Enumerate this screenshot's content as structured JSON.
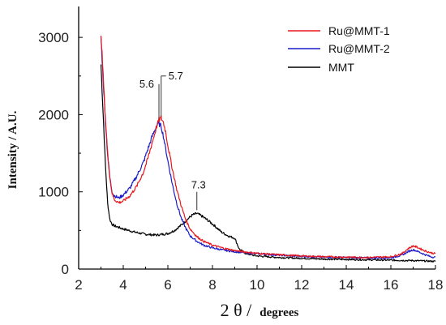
{
  "chart_data": {
    "type": "line",
    "title": "",
    "xlabel": {
      "symbol": "2 θ /",
      "unit": "degrees"
    },
    "ylabel": "Intensity / A.U.",
    "xlim": [
      2,
      18
    ],
    "ylim": [
      0,
      3400
    ],
    "xticks": [
      2,
      4,
      6,
      8,
      10,
      12,
      14,
      16,
      18
    ],
    "yticks": [
      0,
      1000,
      2000,
      3000
    ],
    "legend_position": "top-right",
    "colors": {
      "Ru@MMT-1": "#e8171c",
      "Ru@MMT-2": "#1c1cc8",
      "MMT": "#000000"
    },
    "series": [
      {
        "name": "Ru@MMT-1",
        "x": [
          3.0,
          3.1,
          3.2,
          3.3,
          3.4,
          3.5,
          3.6,
          3.8,
          4.0,
          4.3,
          4.6,
          4.9,
          5.1,
          5.3,
          5.5,
          5.6,
          5.7,
          5.8,
          5.9,
          6.0,
          6.2,
          6.4,
          6.6,
          6.8,
          7.0,
          7.3,
          7.6,
          8.0,
          8.5,
          9.0,
          9.5,
          10.0,
          11.0,
          12.0,
          13.0,
          14.0,
          15.0,
          16.0,
          16.5,
          16.8,
          17.0,
          17.2,
          17.5,
          17.8,
          18.0
        ],
        "y": [
          3060,
          2500,
          1950,
          1500,
          1180,
          980,
          900,
          860,
          880,
          950,
          1070,
          1250,
          1430,
          1640,
          1850,
          1930,
          1960,
          1900,
          1780,
          1600,
          1300,
          1030,
          820,
          640,
          520,
          420,
          360,
          310,
          270,
          240,
          220,
          205,
          185,
          170,
          160,
          155,
          150,
          160,
          200,
          270,
          300,
          280,
          240,
          210,
          200
        ]
      },
      {
        "name": "Ru@MMT-2",
        "x": [
          3.0,
          3.1,
          3.2,
          3.3,
          3.4,
          3.5,
          3.6,
          3.8,
          4.0,
          4.3,
          4.6,
          4.9,
          5.1,
          5.3,
          5.5,
          5.6,
          5.7,
          5.8,
          6.0,
          6.2,
          6.4,
          6.6,
          6.8,
          7.0,
          7.3,
          7.6,
          8.0,
          8.5,
          9.0,
          9.5,
          10.0,
          11.0,
          12.0,
          13.0,
          14.0,
          15.0,
          16.0,
          16.5,
          16.8,
          17.0,
          17.2,
          17.5,
          17.8,
          18.0
        ],
        "y": [
          3000,
          2450,
          1920,
          1480,
          1180,
          1000,
          950,
          920,
          960,
          1050,
          1200,
          1380,
          1550,
          1720,
          1860,
          1880,
          1850,
          1720,
          1400,
          1100,
          850,
          660,
          530,
          430,
          360,
          310,
          275,
          245,
          225,
          210,
          200,
          180,
          165,
          155,
          150,
          145,
          145,
          180,
          230,
          250,
          230,
          190,
          160,
          150
        ]
      },
      {
        "name": "MMT",
        "x": [
          3.0,
          3.1,
          3.2,
          3.3,
          3.4,
          3.5,
          3.6,
          3.8,
          4.0,
          4.5,
          5.0,
          5.5,
          6.0,
          6.3,
          6.6,
          6.9,
          7.1,
          7.3,
          7.5,
          7.8,
          8.1,
          8.4,
          8.7,
          9.0,
          9.2,
          9.5,
          10.0,
          11.0,
          12.0,
          13.0,
          14.0,
          15.0,
          16.0,
          17.0,
          18.0
        ],
        "y": [
          2650,
          2000,
          1350,
          850,
          640,
          580,
          560,
          540,
          520,
          480,
          450,
          440,
          460,
          500,
          570,
          650,
          700,
          720,
          690,
          630,
          560,
          480,
          430,
          400,
          260,
          200,
          170,
          150,
          140,
          130,
          125,
          120,
          115,
          110,
          100
        ]
      }
    ],
    "annotations": [
      {
        "text": "5.6",
        "x": 5.6,
        "y": 1930
      },
      {
        "text": "5.7",
        "x": 5.7,
        "y": 1960
      },
      {
        "text": "7.3",
        "x": 7.3,
        "y": 720
      }
    ]
  }
}
